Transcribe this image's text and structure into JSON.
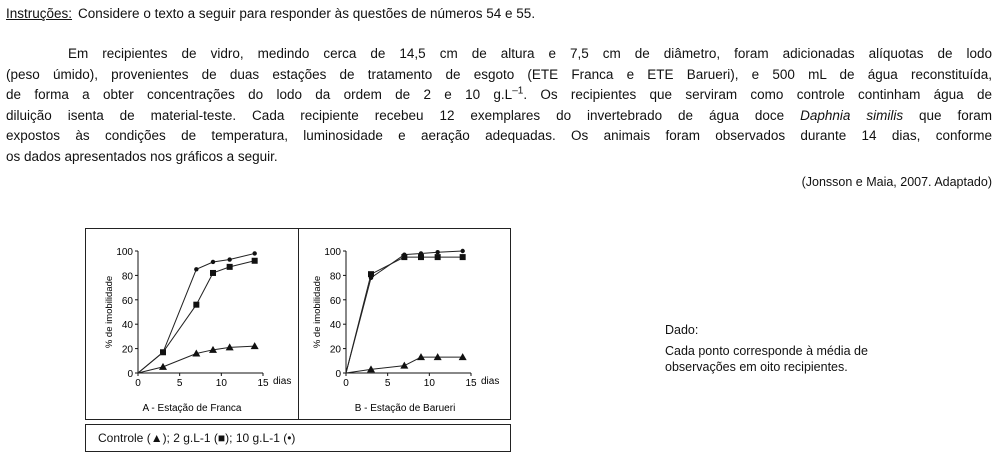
{
  "instructions": {
    "label": "Instruções:",
    "text": "Considere o texto a seguir para responder às questões de números 54 e 55."
  },
  "paragraph": {
    "line1": "Em recipientes de vidro, medindo cerca de 14,5 cm de altura e 7,5 cm de diâmetro, foram adicionadas alíquotas de lodo",
    "line2": "(peso úmido), provenientes de duas estações de tratamento de esgoto (ETE Franca e ETE Barueri), e  500 mL de água reconstituída,",
    "line3a": "de forma a obter concentrações do lodo da ordem de 2 e 10 g.L",
    "line3sup": "–1",
    "line3b": ". Os recipientes que serviram como controle continham água de",
    "line4a": "diluição isenta de material-teste. Cada recipiente recebeu 12 exemplares do invertebrado de água doce ",
    "line4i": "Daphnia similis",
    "line4b": " que foram",
    "line5": "expostos às condições de temperatura, luminosidade e aeração adequadas. Os animais foram observados durante 14 dias, conforme",
    "line6": "os dados apresentados nos gráficos a seguir."
  },
  "citation": "(Jonsson e Maia, 2007. Adaptado)",
  "chart_data": [
    {
      "type": "line",
      "title": "A - Estação de Franca",
      "xlabel": "dias",
      "ylabel": "% de imobilidade",
      "xlim": [
        0,
        15
      ],
      "ylim": [
        0,
        100
      ],
      "xticks": [
        0,
        5,
        10,
        15
      ],
      "yticks": [
        0,
        20,
        40,
        60,
        80,
        100
      ],
      "series": [
        {
          "marker": "triangle",
          "x": [
            0,
            3,
            7,
            9,
            11,
            14
          ],
          "y": [
            0,
            5,
            16,
            19,
            21,
            22
          ]
        },
        {
          "marker": "square",
          "x": [
            0,
            3,
            7,
            9,
            11,
            14
          ],
          "y": [
            0,
            17,
            56,
            82,
            87,
            92
          ]
        },
        {
          "marker": "circle",
          "x": [
            0,
            3,
            7,
            9,
            11,
            14
          ],
          "y": [
            0,
            17,
            85,
            91,
            93,
            98
          ]
        }
      ]
    },
    {
      "type": "line",
      "title": "B - Estação de Barueri",
      "xlabel": "dias",
      "ylabel": "% de imobilidade",
      "xlim": [
        0,
        15
      ],
      "ylim": [
        0,
        100
      ],
      "xticks": [
        0,
        5,
        10,
        15
      ],
      "yticks": [
        0,
        20,
        40,
        60,
        80,
        100
      ],
      "series": [
        {
          "marker": "triangle",
          "x": [
            0,
            3,
            7,
            9,
            11,
            14
          ],
          "y": [
            0,
            3,
            6,
            13,
            13,
            13
          ]
        },
        {
          "marker": "square",
          "x": [
            0,
            3,
            7,
            9,
            11,
            14
          ],
          "y": [
            0,
            81,
            95,
            95,
            95,
            95
          ]
        },
        {
          "marker": "circle",
          "x": [
            0,
            3,
            7,
            9,
            11,
            14
          ],
          "y": [
            0,
            78,
            97,
            98,
            99,
            100
          ]
        }
      ]
    }
  ],
  "legend": "Controle (▲);  2 g.L-1 (■);  10 g.L-1 (•)",
  "note": {
    "title": "Dado:",
    "text": "Cada ponto corresponde à média de observações em oito recipientes."
  }
}
